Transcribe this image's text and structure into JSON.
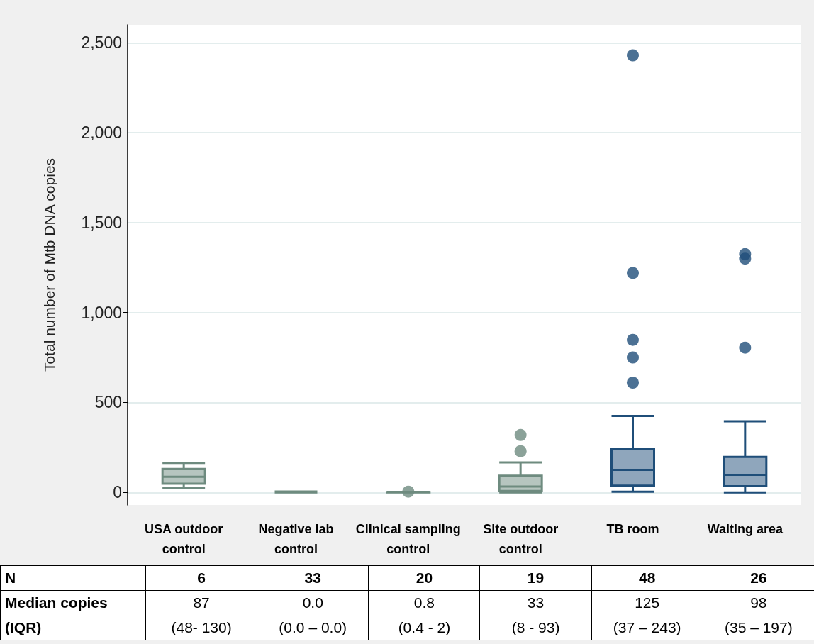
{
  "chart_data": {
    "type": "box",
    "ylabel": "Total number of Mtb DNA copies",
    "categories": [
      "USA outdoor\ncontrol",
      "Negative lab\ncontrol",
      "Clinical sampling\ncontrol",
      "Site outdoor\ncontrol",
      "TB room",
      "Waiting area"
    ],
    "boxes": [
      {
        "low": 25,
        "q1": 48,
        "median": 87,
        "q3": 130,
        "high": 164
      },
      {
        "low": 0,
        "q1": 0,
        "median": 0,
        "q3": 0,
        "high": 5
      },
      {
        "low": 0,
        "q1": 0.4,
        "median": 0.8,
        "q3": 2,
        "high": 3,
        "outliers": [
          4
        ]
      },
      {
        "low": 0,
        "q1": 8,
        "median": 33,
        "q3": 93,
        "high": 167,
        "outliers": [
          229,
          319
        ]
      },
      {
        "low": 4,
        "q1": 37,
        "median": 125,
        "q3": 243,
        "high": 425,
        "outliers": [
          610,
          750,
          848,
          1220,
          2430
        ]
      },
      {
        "low": 0,
        "q1": 35,
        "median": 98,
        "q3": 197,
        "high": 395,
        "outliers": [
          805,
          1300,
          1325
        ]
      }
    ],
    "colors": [
      "#6e8b7f",
      "#6e8b7f",
      "#6e8b7f",
      "#6e8b7f",
      "#1f4e79",
      "#1f4e79"
    ],
    "ylim": [
      -70,
      2600
    ],
    "yticks": [
      0,
      500,
      {
        "value": 1000,
        "label": "1,000"
      },
      {
        "value": 1500,
        "label": "1,500"
      },
      {
        "value": 2000,
        "label": "2,000"
      },
      {
        "value": 2500,
        "label": "2,500"
      }
    ],
    "grid": "y",
    "marker": "circle",
    "annotations": [
      "N",
      "6",
      "33",
      "20",
      "19",
      "48",
      "26",
      "Median copies",
      "87",
      "0.0",
      "0.8",
      "33",
      "125",
      "98",
      "(IQR)",
      "(48- 130)",
      "(0.0 – 0.0)",
      "(0.4 - 2)",
      "(8 - 93)",
      "(37 – 243)",
      "(35 – 197)"
    ]
  }
}
